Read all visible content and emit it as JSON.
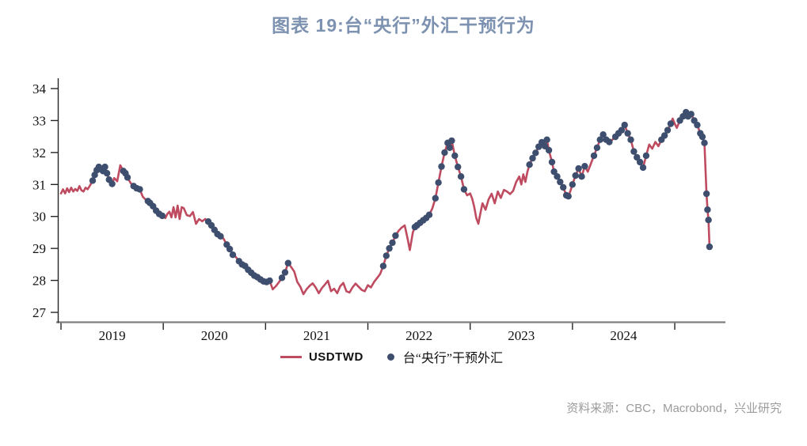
{
  "title": "图表 19:台“央行”外汇干预行为",
  "source": "资料来源：CBC，Macrobond，兴业研究",
  "legend": {
    "line_label": "USDTWD",
    "dot_label": "台“央行”干预外汇"
  },
  "colors": {
    "line": "#bf4b60",
    "dot": "#3e4e6e",
    "title": "#7d92b0",
    "source": "#9b9b9b",
    "x_axis_line": "#7f7f7f",
    "y_axis_line": "#262626",
    "tick_label": "#111111"
  },
  "chart_data": {
    "type": "line",
    "title": "图表 19:台“央行”外汇干预行为",
    "xlabel": "",
    "ylabel": "",
    "grid": false,
    "legend_position": "bottom",
    "x_axis": {
      "range": [
        2019.0,
        2025.5
      ],
      "tick_years": [
        2019,
        2020,
        2021,
        2022,
        2023,
        2024,
        2025
      ],
      "labels": [
        "2019",
        "2020",
        "2021",
        "2022",
        "2023",
        "2024"
      ]
    },
    "y_axis": {
      "range": [
        27,
        34
      ],
      "ticks": [
        27,
        28,
        29,
        30,
        31,
        32,
        33,
        34
      ]
    },
    "series": [
      {
        "name": "USDTWD",
        "points": [
          [
            2019.0,
            30.72
          ],
          [
            2019.02,
            30.85
          ],
          [
            2019.04,
            30.72
          ],
          [
            2019.06,
            30.88
          ],
          [
            2019.08,
            30.76
          ],
          [
            2019.1,
            30.9
          ],
          [
            2019.12,
            30.78
          ],
          [
            2019.14,
            30.86
          ],
          [
            2019.16,
            30.8
          ],
          [
            2019.18,
            30.95
          ],
          [
            2019.2,
            30.82
          ],
          [
            2019.22,
            30.78
          ],
          [
            2019.24,
            30.9
          ],
          [
            2019.26,
            30.85
          ],
          [
            2019.28,
            30.95
          ],
          [
            2019.31,
            31.12
          ],
          [
            2019.33,
            31.3
          ],
          [
            2019.35,
            31.45
          ],
          [
            2019.37,
            31.55
          ],
          [
            2019.39,
            31.48
          ],
          [
            2019.41,
            31.42
          ],
          [
            2019.43,
            31.55
          ],
          [
            2019.45,
            31.35
          ],
          [
            2019.47,
            31.15
          ],
          [
            2019.5,
            31.02
          ],
          [
            2019.52,
            31.2
          ],
          [
            2019.55,
            31.1
          ],
          [
            2019.58,
            31.6
          ],
          [
            2019.61,
            31.42
          ],
          [
            2019.63,
            31.35
          ],
          [
            2019.65,
            31.22
          ],
          [
            2019.68,
            31.05
          ],
          [
            2019.71,
            30.95
          ],
          [
            2019.74,
            30.88
          ],
          [
            2019.77,
            30.85
          ],
          [
            2019.8,
            30.62
          ],
          [
            2019.82,
            30.55
          ],
          [
            2019.85,
            30.48
          ],
          [
            2019.87,
            30.42
          ],
          [
            2019.9,
            30.32
          ],
          [
            2019.93,
            30.18
          ],
          [
            2019.96,
            30.08
          ],
          [
            2019.99,
            30.02
          ],
          [
            2020.02,
            29.95
          ],
          [
            2020.04,
            30.08
          ],
          [
            2020.06,
            30.15
          ],
          [
            2020.08,
            29.97
          ],
          [
            2020.1,
            30.29
          ],
          [
            2020.12,
            29.97
          ],
          [
            2020.14,
            30.34
          ],
          [
            2020.16,
            29.92
          ],
          [
            2020.18,
            30.29
          ],
          [
            2020.2,
            30.26
          ],
          [
            2020.23,
            30.04
          ],
          [
            2020.26,
            30.01
          ],
          [
            2020.29,
            30.14
          ],
          [
            2020.32,
            29.77
          ],
          [
            2020.35,
            29.92
          ],
          [
            2020.38,
            29.85
          ],
          [
            2020.41,
            29.92
          ],
          [
            2020.44,
            29.84
          ],
          [
            2020.47,
            29.72
          ],
          [
            2020.5,
            29.58
          ],
          [
            2020.53,
            29.45
          ],
          [
            2020.56,
            29.38
          ],
          [
            2020.59,
            29.3
          ],
          [
            2020.62,
            29.12
          ],
          [
            2020.65,
            28.98
          ],
          [
            2020.68,
            28.8
          ],
          [
            2020.71,
            28.73
          ],
          [
            2020.74,
            28.6
          ],
          [
            2020.77,
            28.5
          ],
          [
            2020.8,
            28.45
          ],
          [
            2020.83,
            28.33
          ],
          [
            2020.86,
            28.24
          ],
          [
            2020.89,
            28.15
          ],
          [
            2020.92,
            28.1
          ],
          [
            2020.95,
            28.03
          ],
          [
            2020.98,
            27.97
          ],
          [
            2021.01,
            27.95
          ],
          [
            2021.04,
            27.99
          ],
          [
            2021.07,
            27.72
          ],
          [
            2021.1,
            27.82
          ],
          [
            2021.13,
            27.94
          ],
          [
            2021.16,
            28.08
          ],
          [
            2021.19,
            28.25
          ],
          [
            2021.22,
            28.54
          ],
          [
            2021.25,
            28.42
          ],
          [
            2021.28,
            28.28
          ],
          [
            2021.31,
            27.95
          ],
          [
            2021.34,
            27.8
          ],
          [
            2021.37,
            27.57
          ],
          [
            2021.4,
            27.72
          ],
          [
            2021.43,
            27.83
          ],
          [
            2021.46,
            27.91
          ],
          [
            2021.49,
            27.78
          ],
          [
            2021.52,
            27.6
          ],
          [
            2021.55,
            27.76
          ],
          [
            2021.58,
            27.87
          ],
          [
            2021.61,
            27.99
          ],
          [
            2021.64,
            27.66
          ],
          [
            2021.67,
            27.74
          ],
          [
            2021.7,
            27.6
          ],
          [
            2021.73,
            27.82
          ],
          [
            2021.76,
            27.92
          ],
          [
            2021.79,
            27.66
          ],
          [
            2021.82,
            27.62
          ],
          [
            2021.85,
            27.78
          ],
          [
            2021.88,
            27.9
          ],
          [
            2021.91,
            27.8
          ],
          [
            2021.94,
            27.7
          ],
          [
            2021.97,
            27.66
          ],
          [
            2022.0,
            27.85
          ],
          [
            2022.03,
            27.78
          ],
          [
            2022.06,
            27.95
          ],
          [
            2022.09,
            28.07
          ],
          [
            2022.12,
            28.2
          ],
          [
            2022.15,
            28.45
          ],
          [
            2022.18,
            28.77
          ],
          [
            2022.21,
            29.0
          ],
          [
            2022.24,
            29.18
          ],
          [
            2022.27,
            29.4
          ],
          [
            2022.3,
            29.55
          ],
          [
            2022.33,
            29.65
          ],
          [
            2022.36,
            29.72
          ],
          [
            2022.39,
            29.28
          ],
          [
            2022.41,
            28.95
          ],
          [
            2022.44,
            29.5
          ],
          [
            2022.46,
            29.67
          ],
          [
            2022.48,
            29.72
          ],
          [
            2022.51,
            29.8
          ],
          [
            2022.54,
            29.88
          ],
          [
            2022.57,
            29.95
          ],
          [
            2022.6,
            30.05
          ],
          [
            2022.63,
            30.25
          ],
          [
            2022.66,
            30.57
          ],
          [
            2022.69,
            31.06
          ],
          [
            2022.72,
            31.56
          ],
          [
            2022.75,
            32.0
          ],
          [
            2022.78,
            32.3
          ],
          [
            2022.8,
            32.15
          ],
          [
            2022.82,
            32.37
          ],
          [
            2022.85,
            31.9
          ],
          [
            2022.88,
            31.55
          ],
          [
            2022.91,
            31.25
          ],
          [
            2022.94,
            30.85
          ],
          [
            2022.97,
            30.66
          ],
          [
            2023.0,
            30.72
          ],
          [
            2023.02,
            30.55
          ],
          [
            2023.04,
            30.3
          ],
          [
            2023.06,
            29.95
          ],
          [
            2023.08,
            29.77
          ],
          [
            2023.1,
            30.1
          ],
          [
            2023.12,
            30.41
          ],
          [
            2023.15,
            30.21
          ],
          [
            2023.18,
            30.53
          ],
          [
            2023.21,
            30.71
          ],
          [
            2023.24,
            30.41
          ],
          [
            2023.27,
            30.78
          ],
          [
            2023.3,
            30.58
          ],
          [
            2023.33,
            30.83
          ],
          [
            2023.36,
            30.78
          ],
          [
            2023.39,
            30.7
          ],
          [
            2023.42,
            30.8
          ],
          [
            2023.45,
            31.08
          ],
          [
            2023.48,
            31.25
          ],
          [
            2023.5,
            31.0
          ],
          [
            2023.52,
            31.32
          ],
          [
            2023.54,
            31.08
          ],
          [
            2023.56,
            31.4
          ],
          [
            2023.58,
            31.62
          ],
          [
            2023.61,
            31.82
          ],
          [
            2023.64,
            31.99
          ],
          [
            2023.67,
            32.18
          ],
          [
            2023.7,
            32.32
          ],
          [
            2023.73,
            32.2
          ],
          [
            2023.75,
            32.4
          ],
          [
            2023.77,
            32.07
          ],
          [
            2023.8,
            31.7
          ],
          [
            2023.82,
            31.4
          ],
          [
            2023.85,
            31.25
          ],
          [
            2023.88,
            31.08
          ],
          [
            2023.91,
            30.91
          ],
          [
            2023.94,
            30.66
          ],
          [
            2023.96,
            30.63
          ],
          [
            2023.98,
            30.8
          ],
          [
            2024.0,
            31.0
          ],
          [
            2024.03,
            31.28
          ],
          [
            2024.06,
            31.5
          ],
          [
            2024.09,
            31.25
          ],
          [
            2024.12,
            31.57
          ],
          [
            2024.15,
            31.4
          ],
          [
            2024.18,
            31.65
          ],
          [
            2024.21,
            31.9
          ],
          [
            2024.24,
            32.15
          ],
          [
            2024.27,
            32.4
          ],
          [
            2024.3,
            32.56
          ],
          [
            2024.33,
            32.4
          ],
          [
            2024.36,
            32.33
          ],
          [
            2024.39,
            32.4
          ],
          [
            2024.42,
            32.49
          ],
          [
            2024.45,
            32.6
          ],
          [
            2024.48,
            32.7
          ],
          [
            2024.51,
            32.86
          ],
          [
            2024.54,
            32.6
          ],
          [
            2024.57,
            32.4
          ],
          [
            2024.6,
            32.03
          ],
          [
            2024.63,
            31.85
          ],
          [
            2024.66,
            31.7
          ],
          [
            2024.69,
            31.53
          ],
          [
            2024.72,
            31.9
          ],
          [
            2024.75,
            32.25
          ],
          [
            2024.78,
            32.12
          ],
          [
            2024.81,
            32.33
          ],
          [
            2024.84,
            32.2
          ],
          [
            2024.87,
            32.4
          ],
          [
            2024.9,
            32.53
          ],
          [
            2024.93,
            32.7
          ],
          [
            2024.96,
            32.9
          ],
          [
            2024.98,
            33.06
          ],
          [
            2025.0,
            32.9
          ],
          [
            2025.02,
            32.77
          ],
          [
            2025.05,
            33.0
          ],
          [
            2025.08,
            33.13
          ],
          [
            2025.11,
            33.26
          ],
          [
            2025.13,
            33.13
          ],
          [
            2025.16,
            33.2
          ],
          [
            2025.19,
            33.0
          ],
          [
            2025.22,
            32.86
          ],
          [
            2025.25,
            32.6
          ],
          [
            2025.27,
            32.49
          ],
          [
            2025.29,
            32.3
          ],
          [
            2025.31,
            30.71
          ],
          [
            2025.32,
            30.21
          ],
          [
            2025.33,
            29.89
          ],
          [
            2025.34,
            29.05
          ]
        ]
      }
    ],
    "interventions": {
      "name": "台“央行”干预外汇",
      "description": "dots mark FX intervention periods drawn on top of the USDTWD line",
      "ranges": [
        [
          2019.31,
          2019.5
        ],
        [
          2019.6,
          2019.66
        ],
        [
          2019.69,
          2019.78
        ],
        [
          2019.84,
          2020.0
        ],
        [
          2020.43,
          2020.57
        ],
        [
          2020.6,
          2020.7
        ],
        [
          2020.73,
          2021.05
        ],
        [
          2021.15,
          2021.23
        ],
        [
          2022.13,
          2022.28
        ],
        [
          2022.46,
          2022.62
        ],
        [
          2022.64,
          2022.83
        ],
        [
          2022.84,
          2022.95
        ],
        [
          2023.57,
          2023.97
        ],
        [
          2024.0,
          2024.13
        ],
        [
          2024.2,
          2024.37
        ],
        [
          2024.41,
          2024.73
        ],
        [
          2024.86,
          2024.97
        ],
        [
          2025.03,
          2025.295
        ],
        [
          2025.305,
          2025.345
        ]
      ]
    }
  }
}
